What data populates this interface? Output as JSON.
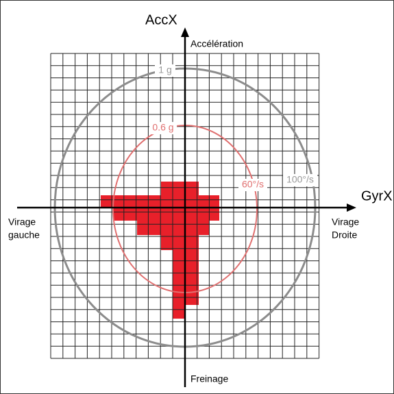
{
  "axes": {
    "y_label": "AccX",
    "x_label": "GyrX",
    "top": "Accélération",
    "bottom": "Freinage",
    "left": [
      "Virage",
      "gauche"
    ],
    "right": [
      "Virage",
      "Droite"
    ]
  },
  "rings": {
    "outer_acc": "1 g",
    "inner_acc": "0.6 g",
    "inner_gyr": "60°/s",
    "outer_gyr": "100°/s"
  }
}
